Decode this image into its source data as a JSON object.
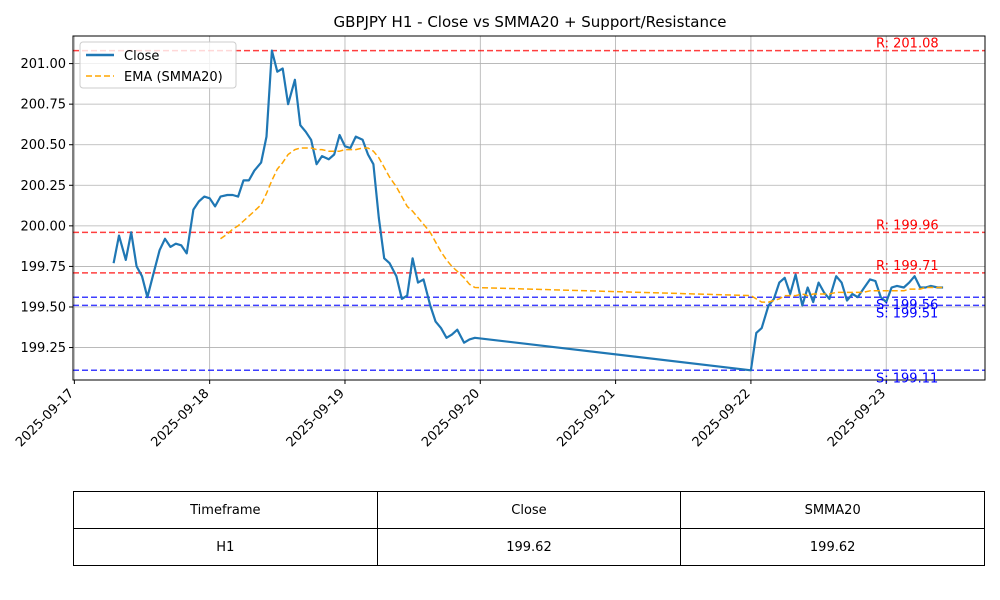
{
  "chart_data": {
    "type": "line",
    "title": "GBPJPY H1 - Close vs SMMA20 + Support/Resistance",
    "xlabel": "",
    "ylabel": "",
    "x_tick_labels": [
      "2025-09-17",
      "2025-09-18",
      "2025-09-19",
      "2025-09-20",
      "2025-09-21",
      "2025-09-22",
      "2025-09-23"
    ],
    "y_tick_labels": [
      "199.25",
      "199.50",
      "199.75",
      "200.00",
      "200.25",
      "200.50",
      "200.75",
      "201.00"
    ],
    "y_ticks": [
      199.25,
      199.5,
      199.75,
      200.0,
      200.25,
      200.5,
      200.75,
      201.0
    ],
    "xlim": [
      -0.01,
      6.73
    ],
    "ylim": [
      199.05,
      201.17
    ],
    "grid": true,
    "legend_position": "top-left",
    "series": [
      {
        "name": "Close",
        "color": "#1f77b4",
        "style": "solid",
        "x": [
          0.29,
          0.33,
          0.38,
          0.42,
          0.46,
          0.5,
          0.54,
          0.58,
          0.63,
          0.67,
          0.71,
          0.75,
          0.79,
          0.83,
          0.88,
          0.92,
          0.96,
          1.0,
          1.04,
          1.08,
          1.13,
          1.17,
          1.21,
          1.25,
          1.29,
          1.33,
          1.38,
          1.42,
          1.46,
          1.5,
          1.54,
          1.58,
          1.63,
          1.67,
          1.71,
          1.75,
          1.79,
          1.83,
          1.88,
          1.92,
          1.96,
          2.0,
          2.04,
          2.08,
          2.13,
          2.17,
          2.21,
          2.25,
          2.29,
          2.33,
          2.38,
          2.42,
          2.46,
          2.5,
          2.54,
          2.58,
          2.63,
          2.67,
          2.71,
          2.75,
          2.79,
          2.83,
          2.88,
          2.92,
          2.96,
          5.0,
          5.04,
          5.08,
          5.13,
          5.17,
          5.21,
          5.25,
          5.29,
          5.33,
          5.38,
          5.42,
          5.46,
          5.5,
          5.54,
          5.58,
          5.63,
          5.67,
          5.71,
          5.75,
          5.79,
          5.83,
          5.88,
          5.92,
          5.96,
          6.0,
          6.04,
          6.08,
          6.13,
          6.17,
          6.21,
          6.25,
          6.29,
          6.33,
          6.38,
          6.42
        ],
        "values": [
          199.77,
          199.94,
          199.79,
          199.96,
          199.75,
          199.69,
          199.56,
          199.69,
          199.85,
          199.92,
          199.87,
          199.89,
          199.88,
          199.83,
          200.1,
          200.15,
          200.18,
          200.17,
          200.12,
          200.18,
          200.19,
          200.19,
          200.18,
          200.28,
          200.28,
          200.34,
          200.39,
          200.55,
          201.08,
          200.95,
          200.97,
          200.75,
          200.9,
          200.62,
          200.58,
          200.53,
          200.38,
          200.43,
          200.41,
          200.44,
          200.56,
          200.49,
          200.48,
          200.55,
          200.53,
          200.44,
          200.38,
          200.05,
          199.8,
          199.77,
          199.69,
          199.55,
          199.57,
          199.8,
          199.65,
          199.67,
          199.51,
          199.41,
          199.37,
          199.31,
          199.33,
          199.36,
          199.28,
          199.3,
          199.31,
          199.11,
          199.34,
          199.37,
          199.51,
          199.55,
          199.65,
          199.68,
          199.58,
          199.7,
          199.51,
          199.62,
          199.53,
          199.65,
          199.59,
          199.55,
          199.69,
          199.65,
          199.54,
          199.58,
          199.56,
          199.61,
          199.67,
          199.66,
          199.56,
          199.53,
          199.62,
          199.63,
          199.62,
          199.65,
          199.69,
          199.62,
          199.62,
          199.63,
          199.62,
          199.62
        ],
        "label": "Close"
      },
      {
        "name": "EMA (SMMA20)",
        "color": "#ffa500",
        "style": "dashed",
        "x": [
          1.08,
          1.13,
          1.17,
          1.21,
          1.25,
          1.29,
          1.33,
          1.38,
          1.42,
          1.46,
          1.5,
          1.54,
          1.58,
          1.63,
          1.67,
          1.71,
          1.75,
          1.79,
          1.83,
          1.88,
          1.92,
          1.96,
          2.0,
          2.04,
          2.08,
          2.13,
          2.17,
          2.21,
          2.25,
          2.29,
          2.33,
          2.38,
          2.42,
          2.46,
          2.5,
          2.54,
          2.58,
          2.63,
          2.67,
          2.71,
          2.75,
          2.79,
          2.83,
          2.88,
          2.92,
          2.96,
          5.0,
          5.04,
          5.08,
          5.13,
          5.17,
          5.21,
          5.25,
          5.29,
          5.33,
          5.38,
          5.42,
          5.46,
          5.5,
          5.54,
          5.58,
          5.63,
          5.67,
          5.71,
          5.75,
          5.79,
          5.83,
          5.88,
          5.92,
          5.96,
          6.0,
          6.04,
          6.08,
          6.13,
          6.17,
          6.21,
          6.25,
          6.29,
          6.33,
          6.38,
          6.42
        ],
        "values": [
          199.92,
          199.95,
          199.98,
          200.0,
          200.03,
          200.06,
          200.09,
          200.13,
          200.2,
          200.28,
          200.35,
          200.39,
          200.44,
          200.47,
          200.48,
          200.48,
          200.48,
          200.47,
          200.47,
          200.46,
          200.46,
          200.46,
          200.47,
          200.47,
          200.47,
          200.48,
          200.48,
          200.46,
          200.42,
          200.36,
          200.3,
          200.24,
          200.18,
          200.12,
          200.09,
          200.05,
          200.01,
          199.96,
          199.9,
          199.84,
          199.79,
          199.75,
          199.72,
          199.68,
          199.64,
          199.62,
          199.57,
          199.55,
          199.53,
          199.53,
          199.54,
          199.55,
          199.57,
          199.57,
          199.57,
          199.58,
          199.57,
          199.58,
          199.58,
          199.58,
          199.58,
          199.59,
          199.59,
          199.59,
          199.59,
          199.59,
          199.59,
          199.6,
          199.6,
          199.6,
          199.6,
          199.6,
          199.6,
          199.6,
          199.61,
          199.61,
          199.61,
          199.62,
          199.62,
          199.62,
          199.62
        ],
        "label": "EMA (SMMA20)"
      }
    ],
    "levels": [
      {
        "kind": "resistance",
        "value": 201.08,
        "label": "R: 201.08",
        "color": "#ff0000"
      },
      {
        "kind": "resistance",
        "value": 199.96,
        "label": "R: 199.96",
        "color": "#ff0000"
      },
      {
        "kind": "resistance",
        "value": 199.71,
        "label": "R: 199.71",
        "color": "#ff0000"
      },
      {
        "kind": "support",
        "value": 199.56,
        "label": "S: 199.56",
        "color": "#0000ff"
      },
      {
        "kind": "support",
        "value": 199.51,
        "label": "S: 199.51",
        "color": "#0000ff"
      },
      {
        "kind": "support",
        "value": 199.11,
        "label": "S: 199.11",
        "color": "#0000ff"
      }
    ]
  },
  "summary_table": {
    "headers": {
      "col1": "Timeframe",
      "col2": "Close",
      "col3": "SMMA20"
    },
    "row": {
      "col1": "H1",
      "col2": "199.62",
      "col3": "199.62"
    }
  }
}
